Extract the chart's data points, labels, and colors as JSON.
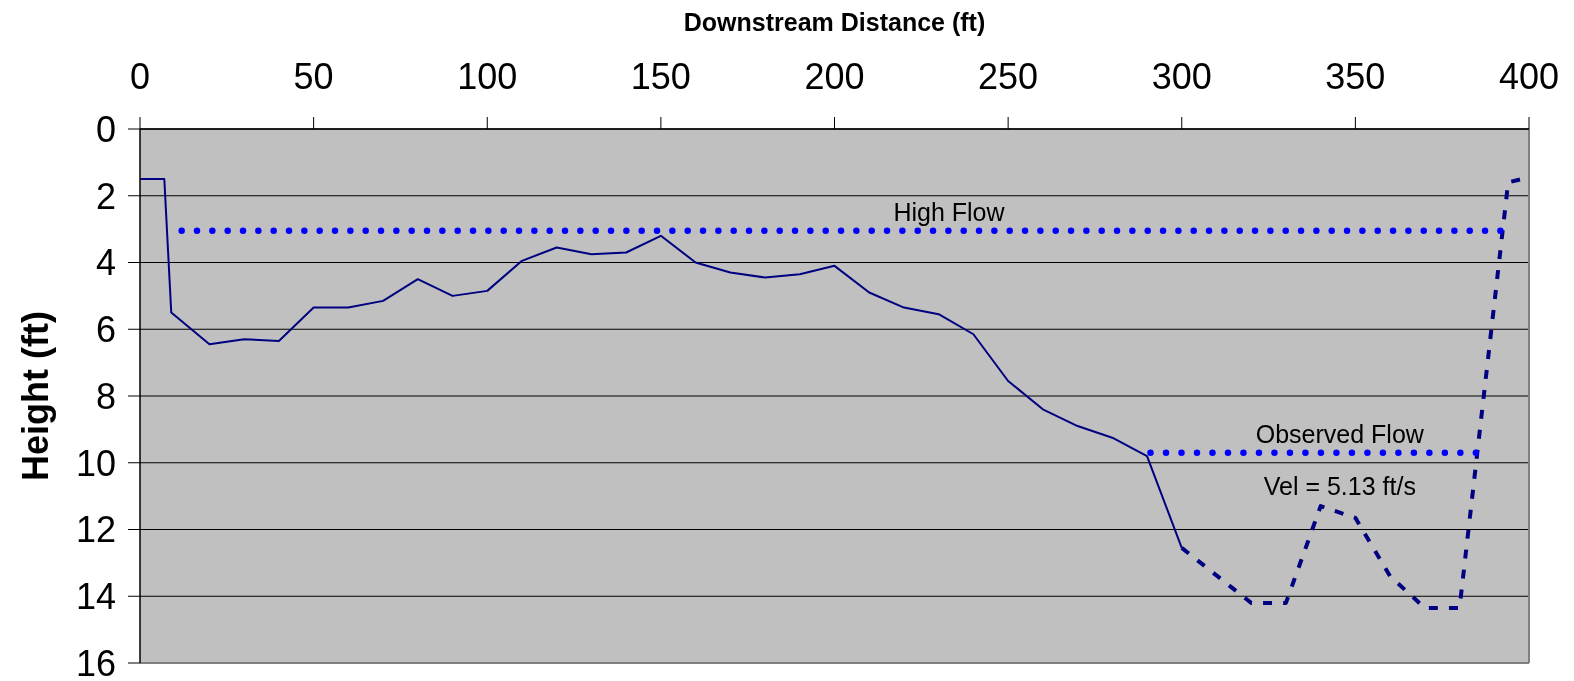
{
  "chart_data": {
    "type": "line",
    "xlabel": "Downstream Distance (ft)",
    "ylabel": "Height (ft)",
    "xlim": [
      0,
      400
    ],
    "xticks": [
      0,
      50,
      100,
      150,
      200,
      250,
      300,
      350,
      400
    ],
    "ylim": [
      16,
      0
    ],
    "yticks": [
      0,
      2,
      4,
      6,
      8,
      10,
      12,
      14,
      16
    ],
    "grid": "y",
    "series": [
      {
        "color": "#000080",
        "line_style": "solid",
        "x": [
          0,
          7,
          9,
          20,
          30,
          40,
          50,
          60,
          70,
          80,
          90,
          100,
          110,
          120,
          130,
          140,
          150,
          160,
          170,
          180,
          190,
          200,
          210,
          220,
          230,
          240,
          250,
          260,
          270,
          280,
          290,
          300
        ],
        "values": [
          1.5,
          1.5,
          5.5,
          6.45,
          6.3,
          6.35,
          5.35,
          5.35,
          5.15,
          4.5,
          5.0,
          4.85,
          3.95,
          3.55,
          3.75,
          3.7,
          3.2,
          4.0,
          4.3,
          4.45,
          4.35,
          4.1,
          4.9,
          5.35,
          5.55,
          6.15,
          7.55,
          8.4,
          8.9,
          9.25,
          9.8,
          12.55
        ]
      },
      {
        "color": "#000080",
        "line_style": "dashed",
        "x": [
          300,
          320,
          330,
          340,
          350,
          360,
          370,
          380,
          394,
          398
        ],
        "values": [
          12.55,
          14.2,
          14.2,
          11.3,
          11.65,
          13.4,
          14.35,
          14.35,
          1.6,
          1.5
        ]
      },
      {
        "name": "High Flow",
        "color": "#0000ff",
        "line_style": "dotted",
        "x": [
          12,
          393
        ],
        "values": [
          3.05,
          3.05
        ]
      },
      {
        "name": "Observed Flow",
        "color": "#0000ff",
        "line_style": "dotted",
        "x": [
          291,
          385
        ],
        "values": [
          9.7,
          9.7
        ]
      }
    ],
    "annotations": [
      "Vel = 5.13 ft/s"
    ]
  }
}
